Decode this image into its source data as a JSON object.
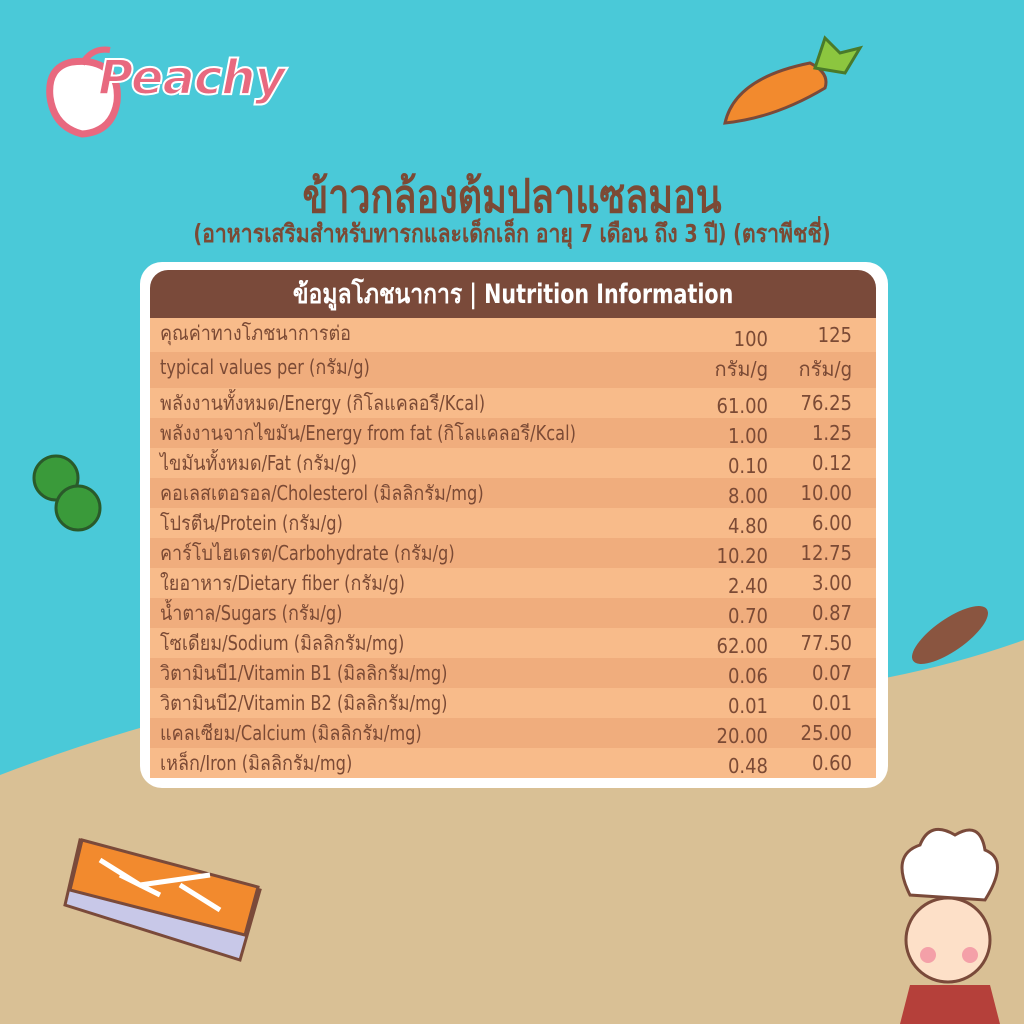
{
  "brand": {
    "logo": "Peachy"
  },
  "header": {
    "title": "ข้าวกล้องต้มปลาแซลมอน",
    "subtitle": "(อาหารเสริมสำหรับทารกและเด็กเล็ก อายุ 7 เดือน ถึง 3 ปี) (ตราพีชชี่)"
  },
  "table": {
    "heading": "ข้อมูลโภชนาการ | Nutrition Information",
    "per_label_th": "คุณค่าทางโภชนาการต่อ",
    "per_label_en": "typical values per (กรัม/g)",
    "col1_amount": "100",
    "col2_amount": "125",
    "col1_unit": "กรัม/g",
    "col2_unit": "กรัม/g",
    "rows": [
      {
        "name": "พลังงานทั้งหมด/Energy (กิโลแคลอรี/Kcal)",
        "v100": "61.00",
        "v125": "76.25"
      },
      {
        "name": "พลังงานจากไขมัน/Energy from fat (กิโลแคลอรี/Kcal)",
        "v100": "1.00",
        "v125": "1.25"
      },
      {
        "name": "ไขมันทั้งหมด/Fat (กรัม/g)",
        "v100": "0.10",
        "v125": "0.12"
      },
      {
        "name": "คอเลสเตอรอล/Cholesterol (มิลลิกรัม/mg)",
        "v100": "8.00",
        "v125": "10.00"
      },
      {
        "name": "โปรตีน/Protein (กรัม/g)",
        "v100": "4.80",
        "v125": "6.00"
      },
      {
        "name": "คาร์โบไฮเดรต/Carbohydrate (กรัม/g)",
        "v100": "10.20",
        "v125": "12.75"
      },
      {
        "name": "ใยอาหาร/Dietary fiber (กรัม/g)",
        "v100": "2.40",
        "v125": "3.00"
      },
      {
        "name": "น้ำตาล/Sugars (กรัม/g)",
        "v100": "0.70",
        "v125": "0.87"
      },
      {
        "name": "โซเดียม/Sodium (มิลลิกรัม/mg)",
        "v100": "62.00",
        "v125": "77.50"
      },
      {
        "name": "วิตามินบี1/Vitamin B1 (มิลลิกรัม/mg)",
        "v100": "0.06",
        "v125": "0.07"
      },
      {
        "name": "วิตามินบี2/Vitamin B2 (มิลลิกรัม/mg)",
        "v100": "0.01",
        "v125": "0.01"
      },
      {
        "name": "แคลเซียม/Calcium (มิลลิกรัม/mg)",
        "v100": "20.00",
        "v125": "25.00"
      },
      {
        "name": "เหล็ก/Iron (มิลลิกรัม/mg)",
        "v100": "0.48",
        "v125": "0.60"
      }
    ]
  },
  "colors": {
    "sky": "#4ac9d8",
    "ground": "#d9c095",
    "brown": "#7a4a3a",
    "row_light": "#f8bb8a",
    "row_dark": "#f0ad7d"
  }
}
